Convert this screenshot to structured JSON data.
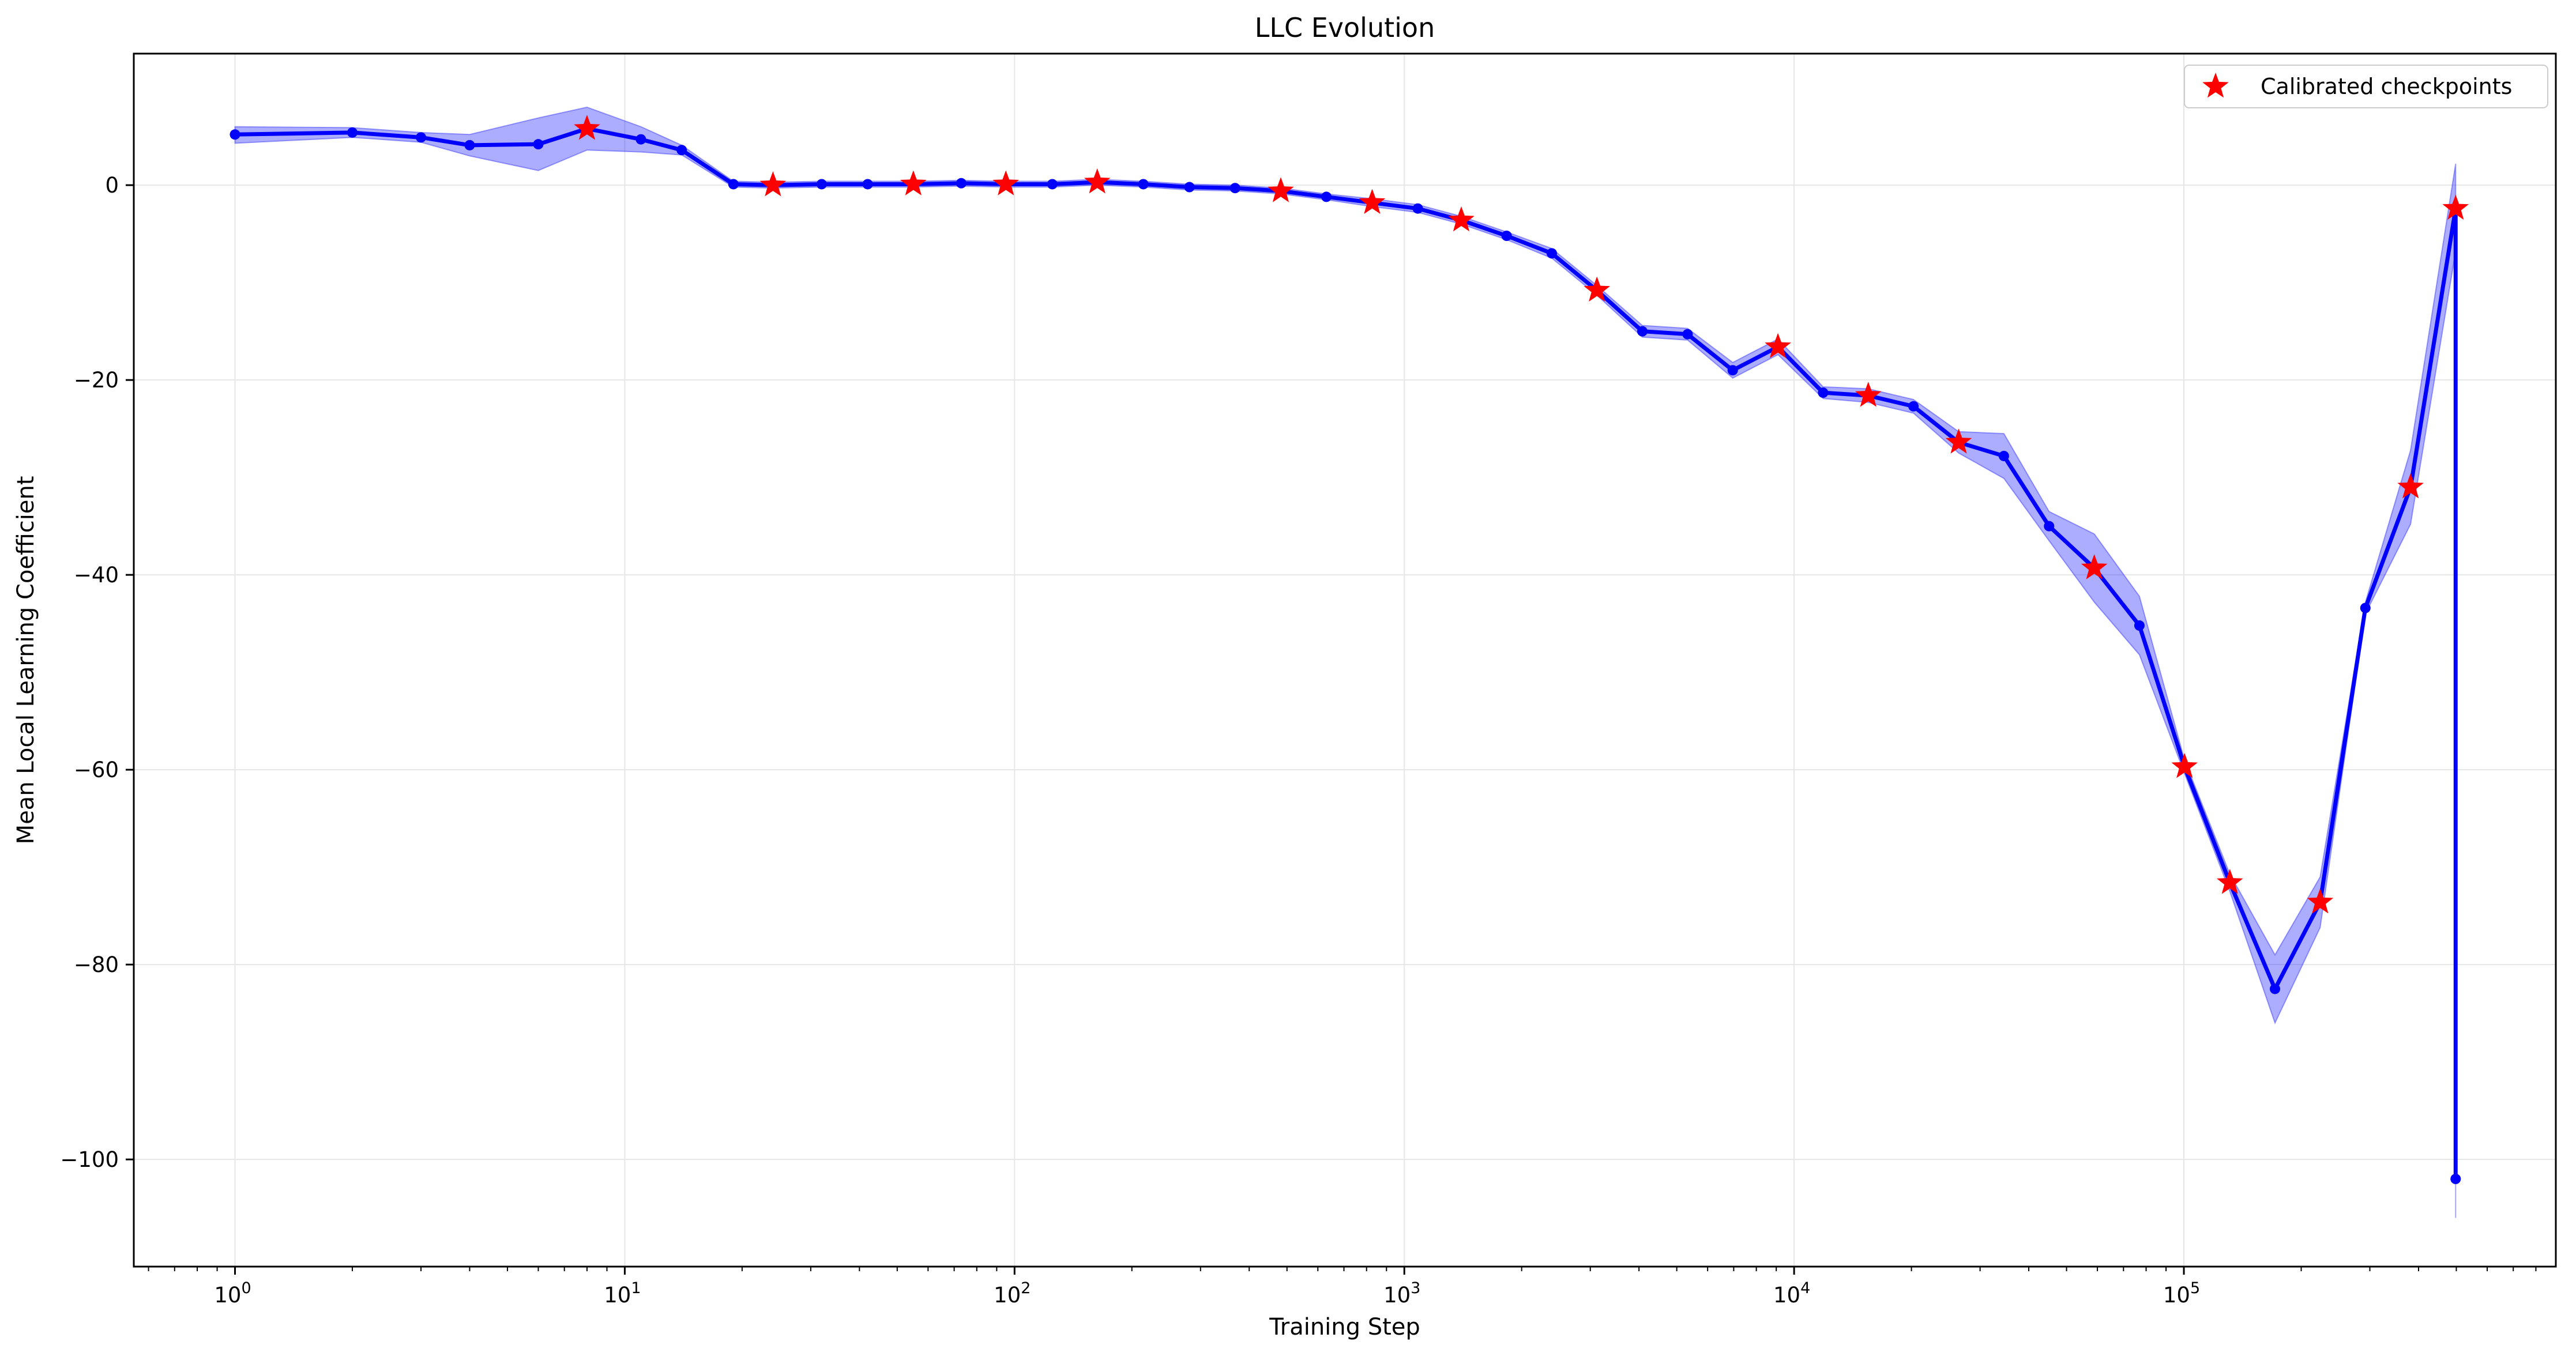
{
  "chart_data": {
    "type": "line",
    "title": "LLC Evolution",
    "xlabel": "Training Step",
    "ylabel": "Mean Local Learning Coefficient",
    "x_scale": "log",
    "xlim": [
      0.55,
      900000
    ],
    "ylim": [
      -111,
      13.5
    ],
    "grid": true,
    "legend_position": "top-right",
    "x_ticks": [
      {
        "value": 1,
        "base": "10",
        "exp": "0"
      },
      {
        "value": 10,
        "base": "10",
        "exp": "1"
      },
      {
        "value": 100,
        "base": "10",
        "exp": "2"
      },
      {
        "value": 1000,
        "base": "10",
        "exp": "3"
      },
      {
        "value": 10000,
        "base": "10",
        "exp": "4"
      },
      {
        "value": 100000,
        "base": "10",
        "exp": "5"
      }
    ],
    "y_ticks": [
      {
        "value": 0,
        "label": "0"
      },
      {
        "value": -20,
        "label": "−20"
      },
      {
        "value": -40,
        "label": "−40"
      },
      {
        "value": -60,
        "label": "−60"
      },
      {
        "value": -80,
        "label": "−80"
      },
      {
        "value": -100,
        "label": "−100"
      }
    ],
    "colors": {
      "line": "#0000ff",
      "band": "#0000ff",
      "band_opacity": 0.32,
      "marker": "#ff0000",
      "grid": "#e6e6e6",
      "legend_border": "#cccccc"
    },
    "series": [
      {
        "type": "line",
        "points": [
          {
            "x": 1,
            "y": 5.2,
            "lo": 4.3,
            "hi": 6.0
          },
          {
            "x": 2,
            "y": 5.4,
            "lo": 4.9,
            "hi": 5.9
          },
          {
            "x": 3,
            "y": 4.9,
            "lo": 4.4,
            "hi": 5.4
          },
          {
            "x": 4,
            "y": 4.1,
            "lo": 3.0,
            "hi": 5.2
          },
          {
            "x": 6,
            "y": 4.2,
            "lo": 1.5,
            "hi": 6.9
          },
          {
            "x": 8,
            "y": 5.8,
            "lo": 3.6,
            "hi": 8.0
          },
          {
            "x": 11,
            "y": 4.7,
            "lo": 3.4,
            "hi": 6.0
          },
          {
            "x": 14,
            "y": 3.6,
            "lo": 3.1,
            "hi": 4.1
          },
          {
            "x": 19,
            "y": 0.1,
            "lo": -0.2,
            "hi": 0.4
          },
          {
            "x": 24,
            "y": 0.0,
            "lo": -0.3,
            "hi": 0.3
          },
          {
            "x": 32,
            "y": 0.1,
            "lo": -0.2,
            "hi": 0.4
          },
          {
            "x": 42,
            "y": 0.1,
            "lo": -0.2,
            "hi": 0.4
          },
          {
            "x": 55,
            "y": 0.1,
            "lo": -0.2,
            "hi": 0.4
          },
          {
            "x": 73,
            "y": 0.2,
            "lo": -0.1,
            "hi": 0.5
          },
          {
            "x": 95,
            "y": 0.1,
            "lo": -0.2,
            "hi": 0.4
          },
          {
            "x": 125,
            "y": 0.1,
            "lo": -0.2,
            "hi": 0.4
          },
          {
            "x": 163,
            "y": 0.3,
            "lo": 0.0,
            "hi": 0.6
          },
          {
            "x": 214,
            "y": 0.1,
            "lo": -0.2,
            "hi": 0.4
          },
          {
            "x": 281,
            "y": -0.2,
            "lo": -0.5,
            "hi": 0.1
          },
          {
            "x": 368,
            "y": -0.3,
            "lo": -0.6,
            "hi": 0.0
          },
          {
            "x": 482,
            "y": -0.6,
            "lo": -0.9,
            "hi": -0.3
          },
          {
            "x": 631,
            "y": -1.2,
            "lo": -1.5,
            "hi": -0.9
          },
          {
            "x": 827,
            "y": -1.8,
            "lo": -2.2,
            "hi": -1.4
          },
          {
            "x": 1083,
            "y": -2.4,
            "lo": -2.8,
            "hi": -2.0
          },
          {
            "x": 1400,
            "y": -3.6,
            "lo": -4.0,
            "hi": -3.2
          },
          {
            "x": 1830,
            "y": -5.2,
            "lo": -5.6,
            "hi": -4.8
          },
          {
            "x": 2390,
            "y": -7.0,
            "lo": -7.5,
            "hi": -6.5
          },
          {
            "x": 3120,
            "y": -10.8,
            "lo": -11.3,
            "hi": -10.3
          },
          {
            "x": 4080,
            "y": -15.0,
            "lo": -15.6,
            "hi": -14.4
          },
          {
            "x": 5330,
            "y": -15.3,
            "lo": -15.9,
            "hi": -14.7
          },
          {
            "x": 6960,
            "y": -19.0,
            "lo": -19.8,
            "hi": -18.2
          },
          {
            "x": 9090,
            "y": -16.6,
            "lo": -17.4,
            "hi": -15.8
          },
          {
            "x": 11870,
            "y": -21.3,
            "lo": -21.9,
            "hi": -20.7
          },
          {
            "x": 15500,
            "y": -21.6,
            "lo": -22.3,
            "hi": -20.9
          },
          {
            "x": 20240,
            "y": -22.7,
            "lo": -23.4,
            "hi": -22.0
          },
          {
            "x": 26440,
            "y": -26.4,
            "lo": -27.5,
            "hi": -25.3
          },
          {
            "x": 34530,
            "y": -27.8,
            "lo": -30.1,
            "hi": -25.5
          },
          {
            "x": 45100,
            "y": -35.0,
            "lo": -36.5,
            "hi": -33.5
          },
          {
            "x": 58900,
            "y": -39.3,
            "lo": -42.8,
            "hi": -35.8
          },
          {
            "x": 76900,
            "y": -45.2,
            "lo": -48.2,
            "hi": -42.2
          },
          {
            "x": 100400,
            "y": -59.7,
            "lo": -60.4,
            "hi": -59.0
          },
          {
            "x": 131200,
            "y": -71.6,
            "lo": -72.5,
            "hi": -70.7
          },
          {
            "x": 171300,
            "y": -82.5,
            "lo": -86.0,
            "hi": -79.0
          },
          {
            "x": 223700,
            "y": -73.6,
            "lo": -76.2,
            "hi": -71.0
          },
          {
            "x": 292200,
            "y": -43.4,
            "lo": -44.0,
            "hi": -42.8
          },
          {
            "x": 381600,
            "y": -31.0,
            "lo": -34.8,
            "hi": -27.2
          },
          {
            "x": 498000,
            "y": -2.4,
            "lo": -6.8,
            "hi": 2.2
          },
          {
            "x": 498000,
            "y": -102.0,
            "lo": -106.0,
            "hi": -98.0
          }
        ]
      },
      {
        "type": "scatter",
        "name": "Calibrated checkpoints",
        "marker": "star",
        "points": [
          {
            "x": 8,
            "y": 5.8
          },
          {
            "x": 24,
            "y": 0.0
          },
          {
            "x": 55,
            "y": 0.1
          },
          {
            "x": 95,
            "y": 0.1
          },
          {
            "x": 163,
            "y": 0.3
          },
          {
            "x": 482,
            "y": -0.6
          },
          {
            "x": 827,
            "y": -1.8
          },
          {
            "x": 1400,
            "y": -3.6
          },
          {
            "x": 3120,
            "y": -10.8
          },
          {
            "x": 9090,
            "y": -16.6
          },
          {
            "x": 15500,
            "y": -21.6
          },
          {
            "x": 26440,
            "y": -26.4
          },
          {
            "x": 58900,
            "y": -39.3
          },
          {
            "x": 100400,
            "y": -59.7
          },
          {
            "x": 131200,
            "y": -71.6
          },
          {
            "x": 223700,
            "y": -73.6
          },
          {
            "x": 381600,
            "y": -31.0
          },
          {
            "x": 498000,
            "y": -2.4
          }
        ]
      }
    ]
  }
}
